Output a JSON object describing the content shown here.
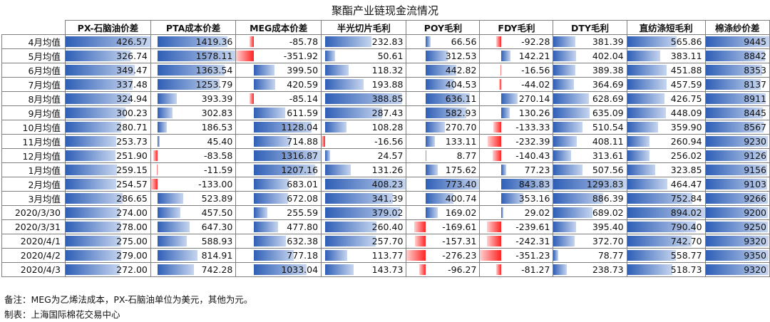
{
  "title": "聚酯产业链现金流情况",
  "chart_data": {
    "type": "table",
    "columns": [
      "PX-石脑油价差",
      "PTA成本价差",
      "MEG成本价差",
      "半光切片毛利",
      "POY毛利",
      "FDY毛利",
      "DTY毛利",
      "直纺涤短毛利",
      "棉涤纱价差"
    ],
    "rows": [
      {
        "label": "4月均值",
        "values": [
          426.57,
          1419.36,
          -85.78,
          232.83,
          66.56,
          -92.28,
          381.39,
          565.86,
          9445
        ]
      },
      {
        "label": "5月均值",
        "values": [
          326.74,
          1578.11,
          -351.92,
          50.61,
          312.53,
          142.21,
          402.04,
          383.11,
          8842
        ]
      },
      {
        "label": "6月均值",
        "values": [
          349.47,
          1363.54,
          399.5,
          118.32,
          442.82,
          -16.56,
          389.38,
          451.88,
          8353
        ]
      },
      {
        "label": "7月均值",
        "values": [
          337.48,
          1253.79,
          420.59,
          193.88,
          404.53,
          -44.02,
          364.69,
          457.59,
          8137
        ]
      },
      {
        "label": "8月均值",
        "values": [
          324.94,
          393.39,
          -85.14,
          388.85,
          636.11,
          270.14,
          628.69,
          426.75,
          8911
        ]
      },
      {
        "label": "9月均值",
        "values": [
          300.23,
          302.83,
          611.59,
          287.43,
          582.93,
          130.26,
          635.09,
          448.09,
          8445
        ]
      },
      {
        "label": "10月均值",
        "values": [
          280.71,
          186.53,
          1128.04,
          108.28,
          270.7,
          -133.33,
          510.54,
          359.9,
          8567
        ]
      },
      {
        "label": "11月均值",
        "values": [
          253.73,
          45.4,
          714.88,
          -16.56,
          133.11,
          -232.39,
          408.11,
          260.94,
          9230
        ]
      },
      {
        "label": "12月均值",
        "values": [
          251.9,
          -83.58,
          1316.87,
          24.57,
          8.77,
          -140.43,
          313.61,
          256.02,
          9126
        ]
      },
      {
        "label": "1月均值",
        "values": [
          259.15,
          -11.59,
          1207.16,
          131.26,
          175.62,
          77.23,
          507.56,
          323.85,
          9156
        ]
      },
      {
        "label": "2月均值",
        "values": [
          254.57,
          -133.0,
          683.01,
          408.23,
          773.4,
          843.83,
          1293.83,
          464.47,
          9103
        ]
      },
      {
        "label": "3月均值",
        "values": [
          286.65,
          523.89,
          672.08,
          341.39,
          400.74,
          353.16,
          886.39,
          752.84,
          9266
        ]
      },
      {
        "label": "2020/3/30",
        "values": [
          274.0,
          457.5,
          255.59,
          379.02,
          169.02,
          29.02,
          689.02,
          894.02,
          9200
        ]
      },
      {
        "label": "2020/3/31",
        "values": [
          278.0,
          647.3,
          477.8,
          260.4,
          -169.61,
          -239.61,
          395.4,
          790.4,
          9250
        ]
      },
      {
        "label": "2020/4/1",
        "values": [
          275.0,
          588.93,
          632.38,
          257.7,
          -157.31,
          -242.31,
          372.7,
          742.7,
          9320
        ]
      },
      {
        "label": "2020/4/2",
        "values": [
          279.0,
          814.91,
          777.18,
          113.77,
          -276.23,
          -351.23,
          78.77,
          558.77,
          9350
        ]
      },
      {
        "label": "2020/4/3",
        "values": [
          272.0,
          742.28,
          1033.04,
          143.73,
          -96.27,
          -81.27,
          238.73,
          518.73,
          9320
        ]
      }
    ]
  },
  "notes": {
    "remark": "备注：MEG为乙烯法成本，PX-石脑油单位为美元，其他为元。",
    "source": "制表：上海国际棉花交易中心"
  },
  "colors": {
    "positive_bar": "#2f5fb6",
    "negative_bar": "#ff2323",
    "grid": "#7f7f7f"
  }
}
